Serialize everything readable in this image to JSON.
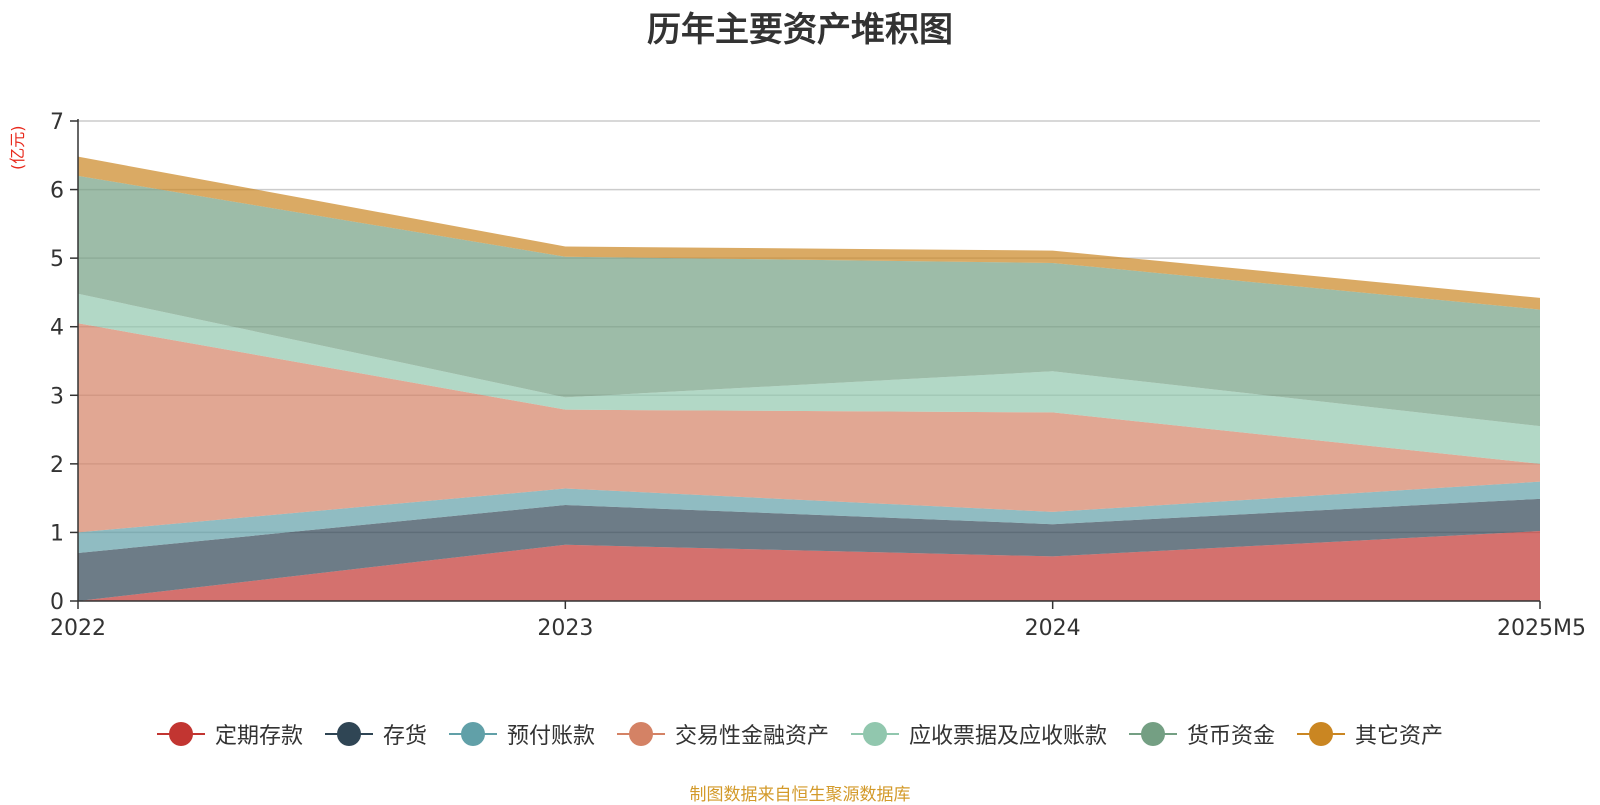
{
  "chart_data": {
    "type": "area",
    "stacked": true,
    "title": "历年主要资产堆积图",
    "unit_label": "(亿元)",
    "categories": [
      "2022",
      "2023",
      "2024",
      "2025M5"
    ],
    "ylim": [
      0,
      7
    ],
    "yticks": [
      "0",
      "1",
      "2",
      "3",
      "4",
      "5",
      "6",
      "7"
    ],
    "grid": true,
    "legend_position": "bottom",
    "series": [
      {
        "name": "定期存款",
        "color": "#c23531",
        "values": [
          0.0,
          0.82,
          0.65,
          1.02
        ]
      },
      {
        "name": "存货",
        "color": "#2f4554",
        "values": [
          0.7,
          0.58,
          0.47,
          0.47
        ]
      },
      {
        "name": "预付账款",
        "color": "#61a0a8",
        "values": [
          0.3,
          0.24,
          0.18,
          0.25
        ]
      },
      {
        "name": "交易性金融资产",
        "color": "#d48265",
        "values": [
          3.05,
          1.15,
          1.45,
          0.26
        ]
      },
      {
        "name": "应收票据及应收账款",
        "color": "#91c7ae",
        "values": [
          0.43,
          0.18,
          0.6,
          0.55
        ]
      },
      {
        "name": "货币资金",
        "color": "#749f83",
        "values": [
          1.72,
          2.05,
          1.58,
          1.7
        ]
      },
      {
        "name": "其它资产",
        "color": "#ca8622",
        "values": [
          0.28,
          0.15,
          0.18,
          0.17
        ]
      }
    ]
  },
  "footer": {
    "source": "制图数据来自恒生聚源数据库"
  }
}
